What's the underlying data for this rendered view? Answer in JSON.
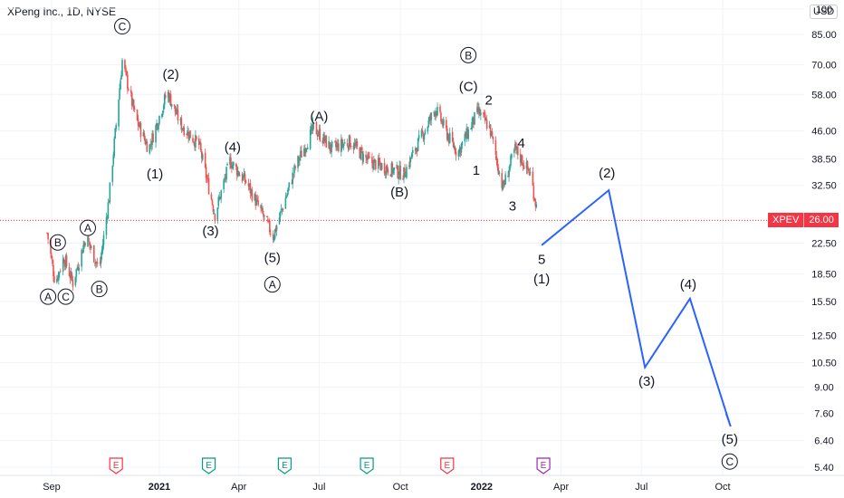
{
  "header": {
    "title": "XPeng Inc., 1D, NYSE",
    "currency": "USD"
  },
  "last_price": {
    "symbol": "XPEV",
    "value": "26.00"
  },
  "colors": {
    "up": "#26a69a",
    "down": "#ef5350",
    "projection": "#2962ff",
    "last_line": "#f23645",
    "earnings": "#f23645",
    "event_e": "#089981",
    "event_purple": "#9c27b0"
  },
  "chart_data": {
    "type": "candlestick",
    "y_scale": "log",
    "y_ticks": [
      "100",
      "85.00",
      "70.00",
      "58.00",
      "46.00",
      "38.50",
      "32.50",
      "26.00",
      "22.50",
      "18.50",
      "15.50",
      "12.50",
      "10.50",
      "9.00",
      "7.60",
      "6.40",
      "5.40"
    ],
    "x_ticks": [
      "Sep",
      "2021",
      "Apr",
      "Jul",
      "Oct",
      "2022",
      "Apr",
      "Jul",
      "Oct"
    ],
    "price_path": [
      {
        "date": "2020-08-27",
        "price": 24
      },
      {
        "date": "2020-09-05",
        "price": 17.5
      },
      {
        "date": "2020-09-15",
        "price": 20.5
      },
      {
        "date": "2020-09-25",
        "price": 17.5
      },
      {
        "date": "2020-10-10",
        "price": 23.5
      },
      {
        "date": "2020-10-25",
        "price": 19
      },
      {
        "date": "2020-11-05",
        "price": 30
      },
      {
        "date": "2020-11-20",
        "price": 72
      },
      {
        "date": "2020-12-05",
        "price": 50
      },
      {
        "date": "2020-12-20",
        "price": 41
      },
      {
        "date": "2021-01-10",
        "price": 59
      },
      {
        "date": "2021-01-25",
        "price": 48
      },
      {
        "date": "2021-02-15",
        "price": 42
      },
      {
        "date": "2021-03-05",
        "price": 27
      },
      {
        "date": "2021-03-22",
        "price": 38
      },
      {
        "date": "2021-04-10",
        "price": 33
      },
      {
        "date": "2021-05-10",
        "price": 23.5
      },
      {
        "date": "2021-06-05",
        "price": 37
      },
      {
        "date": "2021-06-25",
        "price": 47
      },
      {
        "date": "2021-07-15",
        "price": 41
      },
      {
        "date": "2021-08-05",
        "price": 43
      },
      {
        "date": "2021-08-25",
        "price": 38
      },
      {
        "date": "2021-09-20",
        "price": 36
      },
      {
        "date": "2021-10-05",
        "price": 35
      },
      {
        "date": "2021-10-20",
        "price": 42
      },
      {
        "date": "2021-11-10",
        "price": 53
      },
      {
        "date": "2021-11-25",
        "price": 44
      },
      {
        "date": "2021-12-05",
        "price": 40
      },
      {
        "date": "2021-12-28",
        "price": 52
      },
      {
        "date": "2022-01-10",
        "price": 47
      },
      {
        "date": "2022-01-25",
        "price": 32
      },
      {
        "date": "2022-02-08",
        "price": 41
      },
      {
        "date": "2022-02-25",
        "price": 35
      },
      {
        "date": "2022-03-07",
        "price": 26
      }
    ],
    "projection": [
      {
        "date": "2022-03-10",
        "price": 22.2
      },
      {
        "date": "2022-05-25",
        "price": 31.5
      },
      {
        "date": "2022-07-05",
        "price": 10.2
      },
      {
        "date": "2022-08-25",
        "price": 15.8
      },
      {
        "date": "2022-10-10",
        "price": 7.0
      },
      {
        "date": "2022-10-05",
        "price": 7.6
      }
    ],
    "wave_labels": [
      {
        "text": "A",
        "circled": true,
        "date": "2020-08-28",
        "price": 16.0
      },
      {
        "text": "B",
        "circled": true,
        "date": "2020-09-08",
        "price": 22.6
      },
      {
        "text": "C",
        "circled": true,
        "date": "2020-09-17",
        "price": 16.0
      },
      {
        "text": "A",
        "circled": true,
        "date": "2020-10-12",
        "price": 24.8
      },
      {
        "text": "B",
        "circled": true,
        "date": "2020-10-25",
        "price": 16.8
      },
      {
        "text": "C",
        "circled": true,
        "date": "2020-11-20",
        "price": 89.5
      },
      {
        "text": "(2)",
        "circled": false,
        "date": "2021-01-14",
        "price": 66
      },
      {
        "text": "(1)",
        "circled": false,
        "date": "2020-12-27",
        "price": 35
      },
      {
        "text": "(4)",
        "circled": false,
        "date": "2021-03-25",
        "price": 41.5
      },
      {
        "text": "(3)",
        "circled": false,
        "date": "2021-02-28",
        "price": 24.3
      },
      {
        "text": "(5)",
        "circled": false,
        "date": "2021-05-09",
        "price": 20.5
      },
      {
        "text": "A",
        "circled": true,
        "date": "2021-05-09",
        "price": 17.3
      },
      {
        "text": "(A)",
        "circled": false,
        "date": "2021-07-01",
        "price": 50.5
      },
      {
        "text": "(B)",
        "circled": false,
        "date": "2021-09-30",
        "price": 31.2
      },
      {
        "text": "B",
        "circled": true,
        "date": "2021-12-17",
        "price": 74.5
      },
      {
        "text": "(C)",
        "circled": false,
        "date": "2021-12-17",
        "price": 61
      },
      {
        "text": "2",
        "circled": false,
        "date": "2022-01-09",
        "price": 56
      },
      {
        "text": "1",
        "circled": false,
        "date": "2021-12-26",
        "price": 35.8
      },
      {
        "text": "4",
        "circled": false,
        "date": "2022-02-15",
        "price": 42.5
      },
      {
        "text": "3",
        "circled": false,
        "date": "2022-02-05",
        "price": 28.5
      },
      {
        "text": "5",
        "circled": false,
        "date": "2022-03-10",
        "price": 20.3
      },
      {
        "text": "(1)",
        "circled": false,
        "date": "2022-03-10",
        "price": 17.9
      },
      {
        "text": "(2)",
        "circled": false,
        "date": "2022-05-23",
        "price": 35.2
      },
      {
        "text": "(4)",
        "circled": false,
        "date": "2022-08-23",
        "price": 17.3
      },
      {
        "text": "(3)",
        "circled": false,
        "date": "2022-07-07",
        "price": 9.35
      },
      {
        "text": "(5)",
        "circled": false,
        "date": "2022-10-09",
        "price": 6.45
      },
      {
        "text": "C",
        "circled": true,
        "date": "2022-10-09",
        "price": 5.6
      }
    ],
    "events": [
      {
        "label": "E",
        "type": "earnings",
        "date": "2020-11-13"
      },
      {
        "label": "E",
        "type": "earnings-green",
        "date": "2021-02-26"
      },
      {
        "label": "E",
        "type": "earnings-green",
        "date": "2021-05-23"
      },
      {
        "label": "E",
        "type": "earnings-green",
        "date": "2021-08-24"
      },
      {
        "label": "E",
        "type": "earnings",
        "date": "2021-11-23"
      },
      {
        "label": "E",
        "type": "earnings-purple",
        "date": "2022-03-12"
      }
    ]
  }
}
